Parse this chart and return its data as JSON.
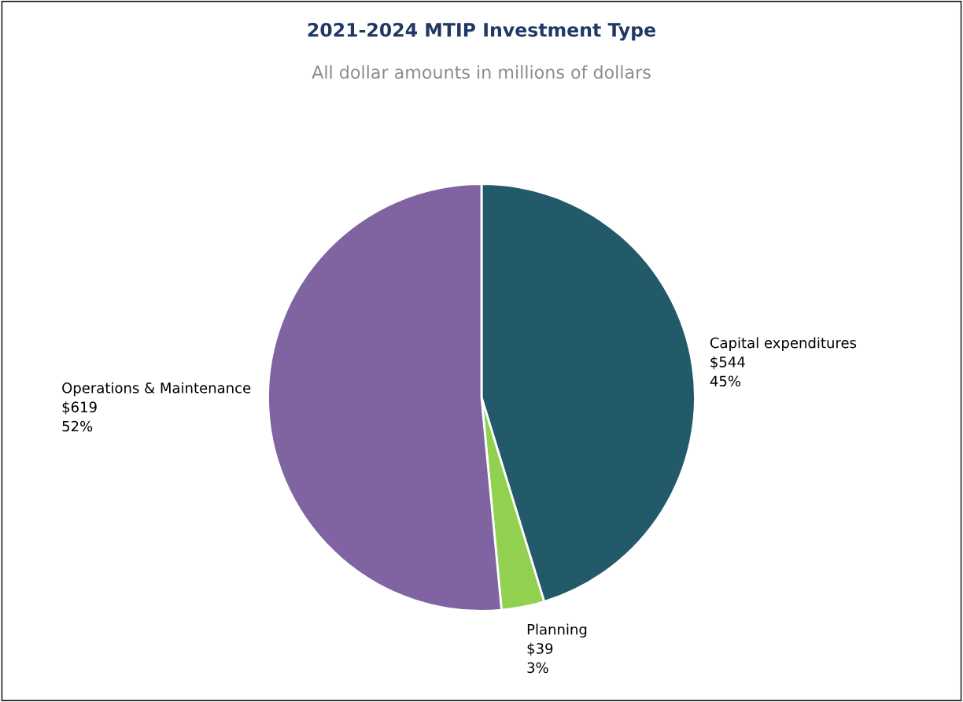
{
  "chart_data": {
    "type": "pie",
    "title": "2021-2024 MTIP Investment Type",
    "subtitle": "All dollar amounts in millions of dollars",
    "categories": [
      "Capital expenditures",
      "Planning",
      "Operations & Maintenance"
    ],
    "values": [
      544,
      39,
      619
    ],
    "value_labels": [
      "$544\n45%",
      "$39\n3%",
      "$619\n52%"
    ],
    "colors": [
      "#235a69",
      "#92d050",
      "#8064a2"
    ]
  }
}
